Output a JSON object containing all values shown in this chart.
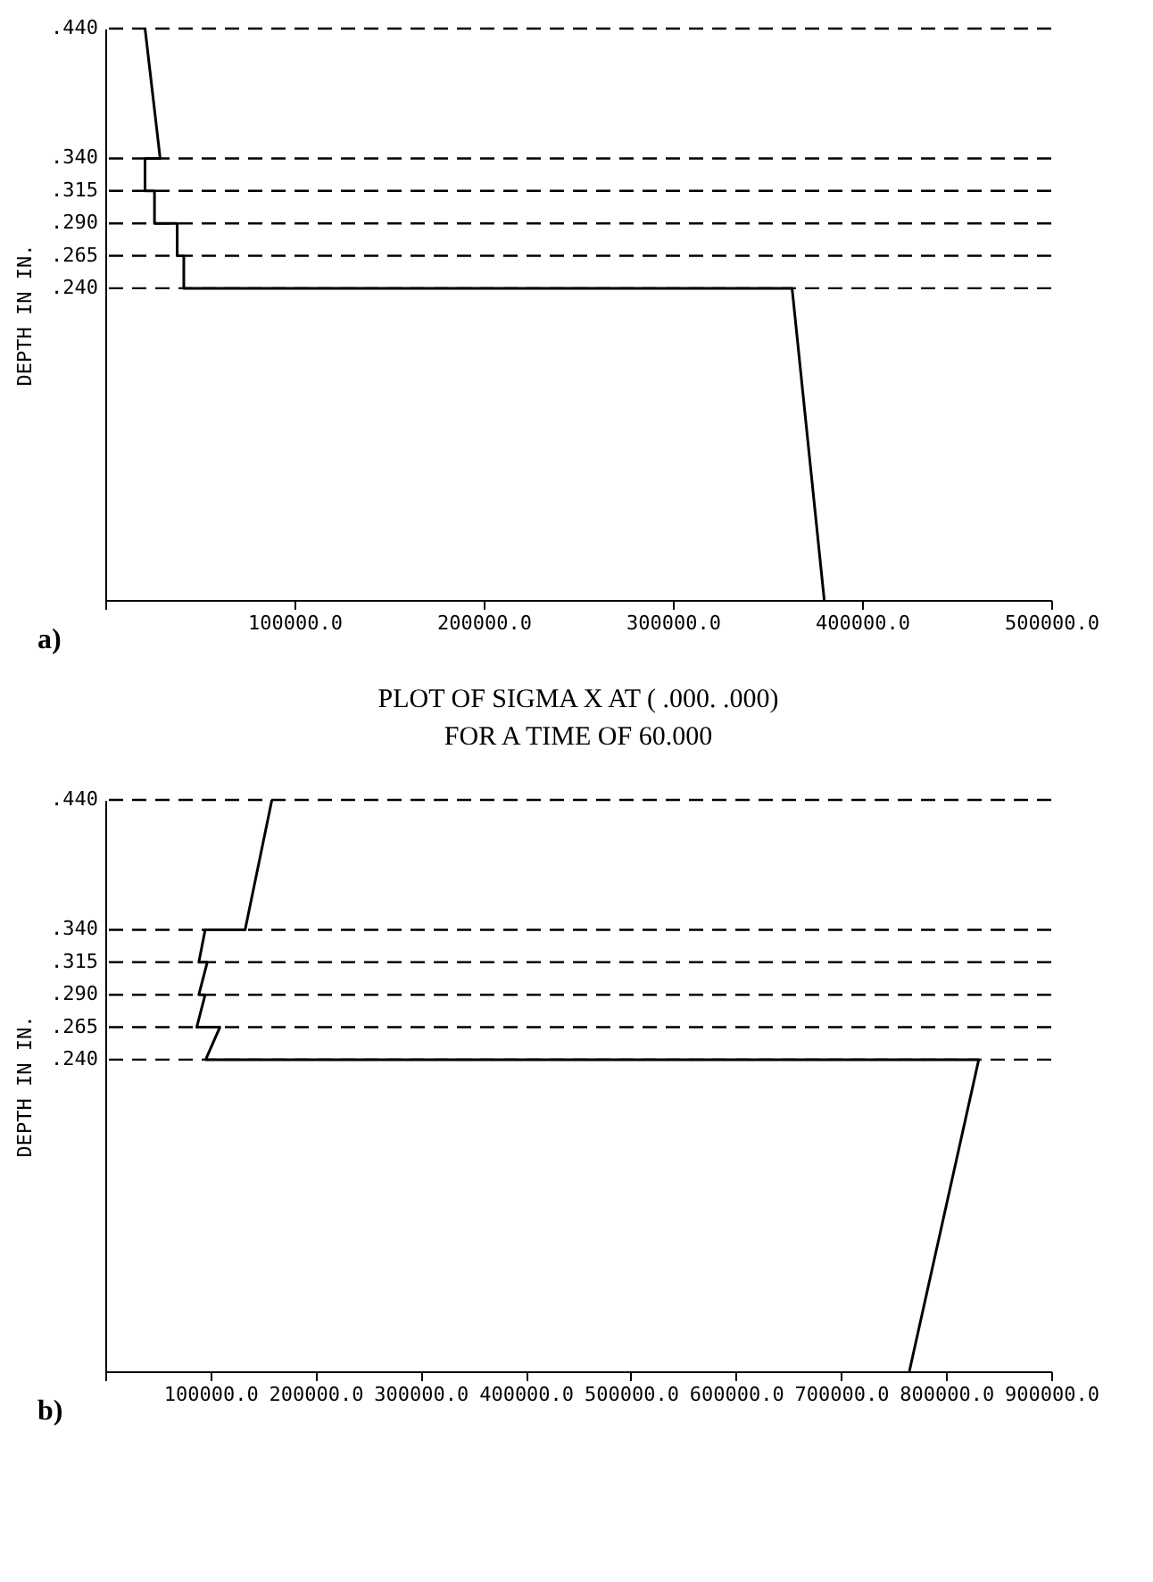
{
  "chart_data": [
    {
      "type": "line",
      "ylabel": "DEPTH IN IN.",
      "annotations": [
        "a)"
      ],
      "tick_labels": "x",
      "grid": false,
      "xlim": [
        0,
        500000
      ],
      "xticks": [
        {
          "value": 0,
          "label": null
        },
        {
          "value": 100000,
          "label": "100000.0"
        },
        {
          "value": 200000,
          "label": "200000.0"
        },
        {
          "value": 300000,
          "label": "300000.0"
        },
        {
          "value": 400000,
          "label": "400000.0"
        },
        {
          "value": 500000,
          "label": "500000.0"
        }
      ],
      "ylim": [
        0,
        0.44
      ],
      "series": [
        {
          "color": "#000000",
          "line_style": "solid",
          "x": [
            21000,
            29000,
            21000,
            21000,
            26000,
            26000,
            38000,
            38000,
            41500,
            41500,
            363000,
            380000
          ],
          "values": [
            0.44,
            0.34,
            0.34,
            0.315,
            0.315,
            0.29,
            0.29,
            0.265,
            0.265,
            0.24,
            0.24,
            0
          ]
        }
      ],
      "ref_lines": [
        {
          "axis": "y",
          "value": 0.44,
          "label": ".440",
          "color": "#000000",
          "line_style": "dashed"
        },
        {
          "axis": "y",
          "value": 0.34,
          "label": ".340",
          "color": "#000000",
          "line_style": "dashed"
        },
        {
          "axis": "y",
          "value": 0.315,
          "label": ".315",
          "color": "#000000",
          "line_style": "dashed"
        },
        {
          "axis": "y",
          "value": 0.29,
          "label": ".290",
          "color": "#000000",
          "line_style": "dashed"
        },
        {
          "axis": "y",
          "value": 0.265,
          "label": ".265",
          "color": "#000000",
          "line_style": "dashed"
        },
        {
          "axis": "y",
          "value": 0.24,
          "label": ".240",
          "color": "#000000",
          "line_style": "dashed"
        }
      ]
    },
    {
      "type": "line",
      "title": "PLOT OF SIGMA X AT ( .000. .000)",
      "subtitle": "FOR A TIME OF 60.000",
      "ylabel": "DEPTH IN IN.",
      "annotations": [
        "b)"
      ],
      "tick_labels": "x",
      "grid": false,
      "xlim": [
        0,
        900000
      ],
      "xticks": [
        {
          "value": 0,
          "label": null
        },
        {
          "value": 100000,
          "label": "100000.0"
        },
        {
          "value": 200000,
          "label": "200000.0"
        },
        {
          "value": 300000,
          "label": "300000.0"
        },
        {
          "value": 400000,
          "label": "400000.0"
        },
        {
          "value": 500000,
          "label": "500000.0"
        },
        {
          "value": 600000,
          "label": "600000.0"
        },
        {
          "value": 700000,
          "label": "700000.0"
        },
        {
          "value": 800000,
          "label": "800000.0"
        },
        {
          "value": 900000,
          "label": "900000.0"
        }
      ],
      "ylim": [
        0,
        0.44
      ],
      "series": [
        {
          "color": "#000000",
          "line_style": "solid",
          "x": [
            158500,
            133000,
            95000,
            89000,
            97000,
            89000,
            95000,
            87000,
            109000,
            95500,
            831000,
            765000
          ],
          "values": [
            0.44,
            0.34,
            0.34,
            0.315,
            0.315,
            0.29,
            0.29,
            0.265,
            0.265,
            0.24,
            0.24,
            0
          ]
        }
      ],
      "ref_lines": [
        {
          "axis": "y",
          "value": 0.44,
          "label": ".440",
          "color": "#000000",
          "line_style": "dashed"
        },
        {
          "axis": "y",
          "value": 0.34,
          "label": ".340",
          "color": "#000000",
          "line_style": "dashed"
        },
        {
          "axis": "y",
          "value": 0.315,
          "label": ".315",
          "color": "#000000",
          "line_style": "dashed"
        },
        {
          "axis": "y",
          "value": 0.29,
          "label": ".290",
          "color": "#000000",
          "line_style": "dashed"
        },
        {
          "axis": "y",
          "value": 0.265,
          "label": ".265",
          "color": "#000000",
          "line_style": "dashed"
        },
        {
          "axis": "y",
          "value": 0.24,
          "label": ".240",
          "color": "#000000",
          "line_style": "dashed"
        }
      ]
    }
  ]
}
